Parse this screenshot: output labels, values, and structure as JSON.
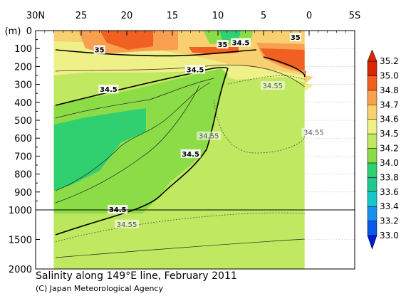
{
  "chart_data": {
    "type": "heatmap",
    "title": "Salinity along 149°E line, February 2011",
    "credit": "(C) Japan Meteorological Agency",
    "ylabel": "(m)",
    "x_ticks": [
      "30N",
      "25",
      "20",
      "15",
      "10",
      "5",
      "0",
      "5S"
    ],
    "x_tick_values": [
      30,
      25,
      20,
      15,
      10,
      5,
      0,
      -5
    ],
    "xlim": [
      30,
      -5
    ],
    "y_ticks_upper": [
      0,
      100,
      200,
      300,
      400,
      500,
      600,
      700,
      800,
      900,
      1000
    ],
    "y_ticks_lower": [
      1500,
      2000
    ],
    "y_axis_break": 1000,
    "data_extent_lat": [
      28,
      0.5
    ],
    "colorbar": {
      "levels": [
        33.0,
        33.2,
        33.4,
        33.6,
        33.8,
        34.0,
        34.2,
        34.5,
        34.6,
        34.7,
        34.8,
        35.0,
        35.2
      ],
      "colors": [
        "#0018d8",
        "#0a58e8",
        "#1890f0",
        "#18c8c8",
        "#20c890",
        "#30d070",
        "#8cdc48",
        "#c0e860",
        "#f0f088",
        "#f8d070",
        "#f8a050",
        "#f06020",
        "#d82800"
      ]
    },
    "contour_labels": [
      {
        "text": "35",
        "lat": 23,
        "depth": 110
      },
      {
        "text": "35",
        "lat": 9.5,
        "depth": 80
      },
      {
        "text": "34.5",
        "lat": 7.5,
        "depth": 70
      },
      {
        "text": "35",
        "lat": 1.5,
        "depth": 40
      },
      {
        "text": "34.5",
        "lat": 12.5,
        "depth": 220
      },
      {
        "text": "34.5",
        "lat": 22,
        "depth": 330
      },
      {
        "text": "34.5",
        "lat": 13,
        "depth": 690
      },
      {
        "text": "34.5",
        "lat": 21,
        "depth": 1000
      },
      {
        "text": "34.55",
        "lat": 4,
        "depth": 310
      },
      {
        "text": "34.55",
        "lat": 11,
        "depth": 590
      },
      {
        "text": "34.55",
        "lat": -0.5,
        "depth": 570
      },
      {
        "text": "34.55",
        "lat": 20,
        "depth": 1250
      }
    ]
  }
}
